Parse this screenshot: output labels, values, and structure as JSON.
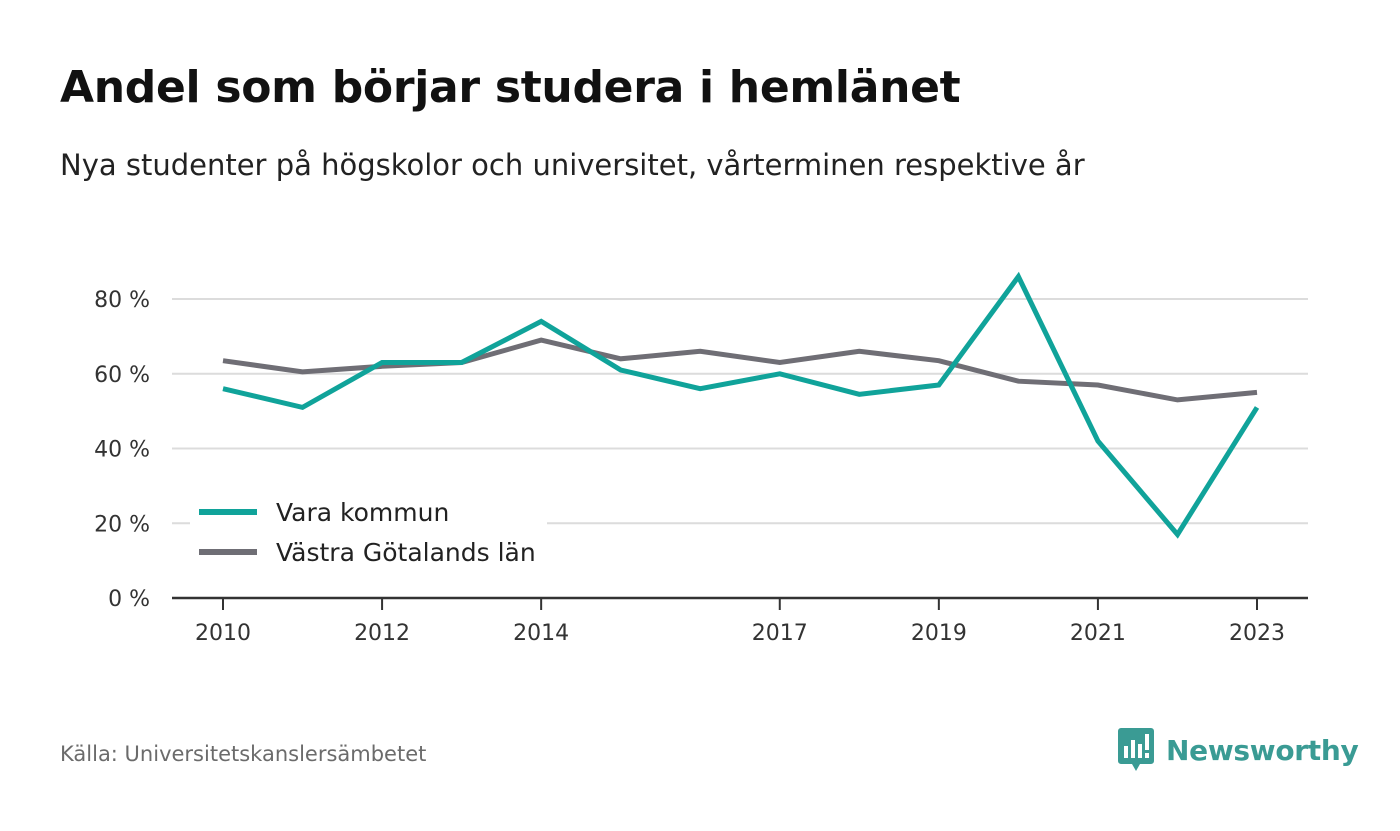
{
  "header": {
    "title": "Andel som börjar studera i hemlänet",
    "subtitle": "Nya studenter på högskolor och universitet, vårterminen respektive år"
  },
  "footer": {
    "source": "Källa: Universitetskanslersämbetet",
    "brand": "Newsworthy",
    "brand_icon": "bar-chart-speech-bubble-icon"
  },
  "colors": {
    "vara": "#10a39a",
    "vastra": "#6f6e75",
    "grid": "#dcdcdc",
    "axis": "#333333",
    "brand": "#3a9b94"
  },
  "chart_data": {
    "type": "line",
    "x": [
      2010,
      2011,
      2012,
      2013,
      2014,
      2015,
      2016,
      2017,
      2018,
      2019,
      2020,
      2021,
      2022,
      2023
    ],
    "x_tick_labels": [
      "2010",
      "2012",
      "2014",
      "2017",
      "2019",
      "2021",
      "2023"
    ],
    "y_tick_labels": [
      "0 %",
      "20 %",
      "40 %",
      "60 %",
      "80 %"
    ],
    "y_ticks": [
      0,
      20,
      40,
      60,
      80
    ],
    "ylim": [
      0,
      80
    ],
    "xlim": [
      2010,
      2023
    ],
    "grid": true,
    "legend_position": "bottom-left",
    "series": [
      {
        "name": "Vara kommun",
        "color": "#10a39a",
        "values": [
          56,
          51,
          63,
          63,
          74,
          61,
          56,
          60,
          54.5,
          57,
          86,
          42,
          17,
          51
        ]
      },
      {
        "name": "Västra Götalands län",
        "color": "#6f6e75",
        "values": [
          63.5,
          60.5,
          62,
          63,
          69,
          64,
          66,
          63,
          66,
          63.5,
          58,
          57,
          53,
          55
        ]
      }
    ]
  }
}
